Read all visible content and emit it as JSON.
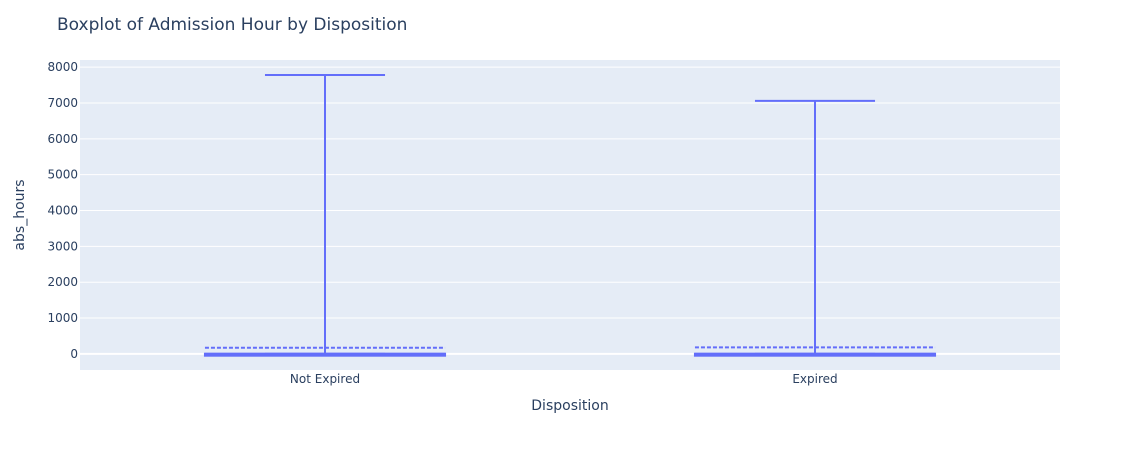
{
  "chart_data": {
    "type": "box",
    "title": "Boxplot of Admission Hour by Disposition",
    "xlabel": "Disposition",
    "ylabel": "abs_hours",
    "ylim": [
      -450,
      8200
    ],
    "yticks": [
      0,
      1000,
      2000,
      3000,
      4000,
      5000,
      6000,
      7000,
      8000
    ],
    "grid": true,
    "legend": "none",
    "colors": {
      "box": "#636efa",
      "plot_bg": "#e5ecf6",
      "grid": "#ffffff",
      "text": "#2a3f5f"
    },
    "categories": [
      "Not Expired",
      "Expired"
    ],
    "boxes": [
      {
        "category": "Not Expired",
        "min": 0,
        "q1": 0,
        "median": 0,
        "q3": 5,
        "max": 7780,
        "mean": 170
      },
      {
        "category": "Expired",
        "min": 0,
        "q1": 0,
        "median": 0,
        "q3": 5,
        "max": 7060,
        "mean": 180
      }
    ]
  }
}
